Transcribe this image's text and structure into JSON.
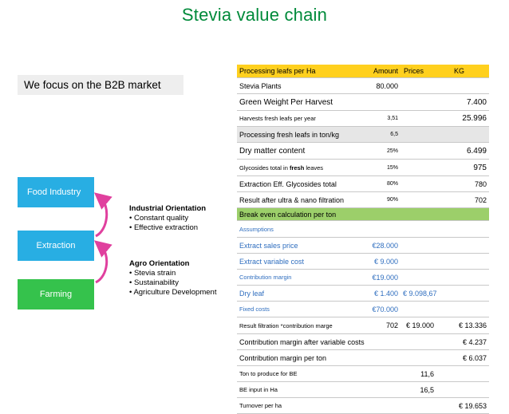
{
  "title": "Stevia value chain",
  "focus": "We focus on the B2B market",
  "chain": {
    "food": "Food Industry",
    "extraction": "Extraction",
    "farming": "Farming"
  },
  "industrial": {
    "head": "Industrial Orientation",
    "bullets": [
      "• Constant quality",
      "• Effective extraction"
    ]
  },
  "agro": {
    "head": "Agro Orientation",
    "bullets": [
      "• Stevia strain",
      "• Sustainability",
      "• Agriculture Development"
    ]
  },
  "table": {
    "headers": [
      "Processing leafs per Ha",
      "Amount",
      "Prices",
      "KG"
    ],
    "rows": [
      {
        "label": "Stevia Plants",
        "amount": "80.000",
        "price": "",
        "kg": "",
        "style": ""
      },
      {
        "label": "Green Weight Per Harvest",
        "amount": "",
        "price": "",
        "kg": "7.400",
        "style": ""
      },
      {
        "label": "Harvests fresh leafs per year",
        "amount": "3,51",
        "price": "",
        "kg": "25.996",
        "style": ""
      },
      {
        "label": "Processing fresh leafs in ton/kg",
        "amount": "6,5",
        "price": "",
        "kg": "",
        "style": "gray"
      },
      {
        "label": "Dry matter content",
        "amount": "25%",
        "price": "",
        "kg": "6.499",
        "style": ""
      },
      {
        "label_pre": "Glycosides total in ",
        "label_bold": "fresh",
        "label_post": " leaves",
        "amount": "15%",
        "price": "",
        "kg": "975",
        "style": ""
      },
      {
        "label": "Extraction Eff. Glycosides total",
        "amount": "80%",
        "price": "",
        "kg": "780",
        "style": ""
      },
      {
        "label": "Result after ultra & nano filtration",
        "amount": "90%",
        "price": "",
        "kg": "702",
        "style": ""
      },
      {
        "label": "Break even calculation per ton",
        "amount": "",
        "price": "",
        "kg": "",
        "style": "green"
      },
      {
        "label": "Assumptions",
        "amount": "",
        "price": "",
        "kg": "",
        "style": "blue"
      },
      {
        "label": "Extract sales price",
        "amount": "€28.000",
        "price": "",
        "kg": "",
        "style": "blue"
      },
      {
        "label": "Extract variable cost",
        "amount": "€ 9.000",
        "price": "",
        "kg": "",
        "style": "blue"
      },
      {
        "label": "Contribution margin",
        "amount": "€19.000",
        "price": "",
        "kg": "",
        "style": "blue"
      },
      {
        "label": "Dry leaf",
        "amount": "€ 1.400",
        "price": "€ 9.098,67",
        "kg": "",
        "style": "blue"
      },
      {
        "label": "Fixed costs",
        "amount": "€70.000",
        "price": "",
        "kg": "",
        "style": "blue"
      },
      {
        "label": "Result filtration  *contribution marge",
        "amount": "702",
        "price": "€ 19.000",
        "kg": "€ 13.336",
        "style": ""
      },
      {
        "label": "Contribution margin after variable costs",
        "amount": "",
        "price": "",
        "kg": "€ 4.237",
        "style": ""
      },
      {
        "label": "Contribution margin per ton",
        "amount": "",
        "price": "",
        "kg": "€ 6.037",
        "style": ""
      },
      {
        "label": "Ton to produce for BE",
        "amount": "",
        "price": "11,6",
        "kg": "",
        "style": ""
      },
      {
        "label": "BE input in Ha",
        "amount": "",
        "price": "16,5",
        "kg": "",
        "style": ""
      },
      {
        "label": "Turnover per ha",
        "amount": "",
        "price": "",
        "kg": "€ 19.653",
        "style": ""
      }
    ]
  },
  "colors": {
    "title": "#008a3a",
    "box_blue": "#28aee3",
    "box_green": "#35c24c",
    "header_yellow": "#ffd01e",
    "break_even_green": "#9ccf6a",
    "assumption_blue": "#2f6ebf"
  }
}
